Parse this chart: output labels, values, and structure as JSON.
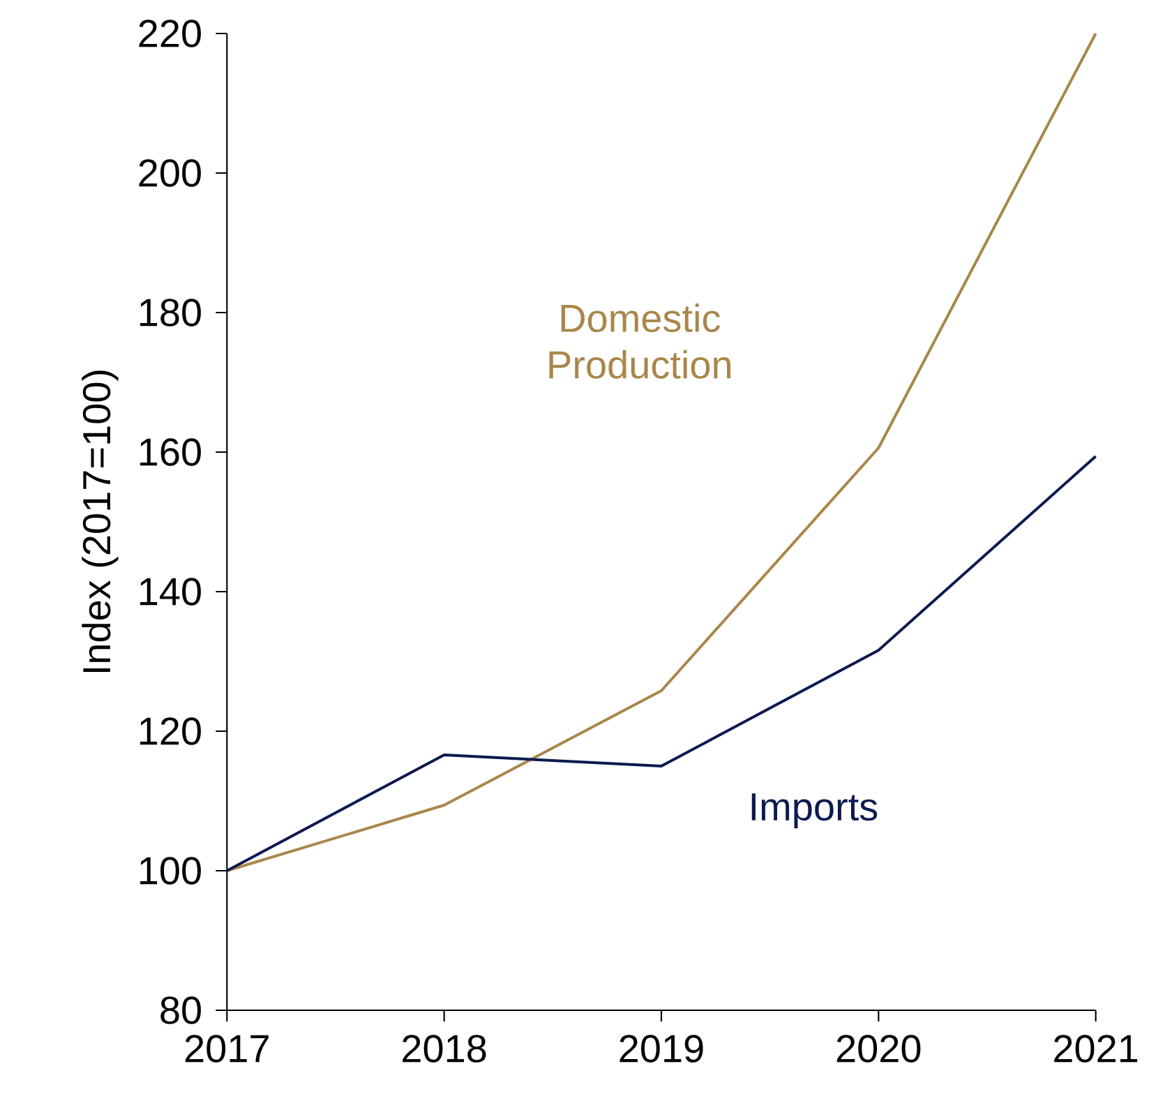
{
  "chart_data": {
    "type": "line",
    "ylabel": "Index (2017=100)",
    "x": [
      2017,
      2018,
      2019,
      2020,
      2021
    ],
    "series": [
      {
        "name": "Domestic Production",
        "color": "#a8874a",
        "values": [
          100,
          109.4,
          125.8,
          160.6,
          220
        ]
      },
      {
        "name": "Imports",
        "color": "#0c1a4f",
        "values": [
          100,
          116.6,
          115,
          131.6,
          159.4
        ]
      }
    ],
    "xlim": [
      2017,
      2021
    ],
    "xticks": [
      2017,
      2018,
      2019,
      2020,
      2021
    ],
    "ylim": [
      80,
      220
    ],
    "yticks": [
      80,
      100,
      120,
      140,
      160,
      180,
      200,
      220
    ],
    "grid": false,
    "marker": "none",
    "line_style": "solid"
  }
}
